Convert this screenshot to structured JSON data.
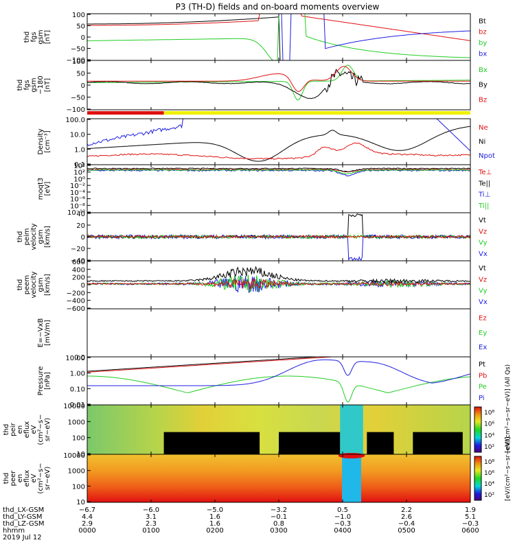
{
  "chart_data": {
    "type": "line",
    "title": "P3 (TH-D) fields and on-board moments overview",
    "panels": [
      {
        "id": "fgs",
        "ylabel_lines": [
          "thd",
          "fgs",
          "gsm",
          "[nT]"
        ],
        "yticks": [
          "100",
          "50",
          "0",
          "−50",
          "−100"
        ],
        "ylim": [
          -100,
          100
        ],
        "legend": [
          {
            "label": "Bt",
            "color": "#000000"
          },
          {
            "label": "bz",
            "color": "#e01010"
          },
          {
            "label": "by",
            "color": "#20cc20"
          },
          {
            "label": "bx",
            "color": "#1c1ce0"
          }
        ]
      },
      {
        "id": "fgs_dsl",
        "ylabel_lines": [
          "thd",
          "fgs",
          "gsm",
          "−180",
          "[nT]"
        ],
        "yticks": [
          "100",
          "50",
          "0",
          "−50",
          "−100"
        ],
        "ylim": [
          -120,
          100
        ],
        "legend": [
          {
            "label": "Bx",
            "color": "#20cc20"
          },
          {
            "label": "By",
            "color": "#000000"
          },
          {
            "label": "Bz",
            "color": "#e01010"
          }
        ]
      },
      {
        "id": "density",
        "ylabel_lines": [
          "Density",
          "[cm⁻³]"
        ],
        "yticks": [
          "100.0",
          "10.0",
          "1.0",
          "0.1"
        ],
        "legend": [
          {
            "label": "Ne",
            "color": "#e01010"
          },
          {
            "label": "Ni",
            "color": "#000000"
          },
          {
            "label": "Npot",
            "color": "#1c1ce0"
          }
        ]
      },
      {
        "id": "temperature",
        "ylabel_lines": [
          "moqt3",
          "[eV]"
        ],
        "yticks": [
          "10⁴",
          "10²",
          "10⁰",
          "10⁻²",
          "10⁻⁴",
          "10⁻⁶",
          "10⁻⁸",
          "10⁻¹⁰"
        ],
        "legend": [
          {
            "label": "Te⊥",
            "color": "#e01010"
          },
          {
            "label": "Te||",
            "color": "#000000"
          },
          {
            "label": "Ti⊥",
            "color": "#1c1ce0"
          },
          {
            "label": "Ti||",
            "color": "#20cc20"
          }
        ]
      },
      {
        "id": "peim_velocity",
        "ylabel_lines": [
          "thd",
          "peim",
          "velocity",
          "gsm",
          "[km/s]"
        ],
        "yticks": [
          "40",
          "20",
          "0",
          "−20",
          "−40"
        ],
        "ylim": [
          -40,
          40
        ],
        "legend": [
          {
            "label": "Vt",
            "color": "#000000"
          },
          {
            "label": "Vz",
            "color": "#e01010"
          },
          {
            "label": "Vy",
            "color": "#20cc20"
          },
          {
            "label": "Vx",
            "color": "#1c1ce0"
          }
        ]
      },
      {
        "id": "peem_velocity",
        "ylabel_lines": [
          "thd",
          "peem",
          "velocity",
          "gsm",
          "[km/s]"
        ],
        "yticks": [
          "600",
          "400",
          "200",
          "0",
          "−200",
          "−400",
          "−600"
        ],
        "ylim": [
          -600,
          600
        ],
        "legend": [
          {
            "label": "Vt",
            "color": "#000000"
          },
          {
            "label": "Vz",
            "color": "#e01010"
          },
          {
            "label": "Vy",
            "color": "#20cc20"
          },
          {
            "label": "Vx",
            "color": "#1c1ce0"
          }
        ]
      },
      {
        "id": "efield",
        "ylabel_lines": [
          "E=−VxB",
          "[mV/m]"
        ],
        "yticks": [
          "0.0"
        ],
        "legend": [
          {
            "label": "Ez",
            "color": "#e01010"
          },
          {
            "label": "Ey",
            "color": "#20cc20"
          },
          {
            "label": "Ex",
            "color": "#1c1ce0"
          }
        ]
      },
      {
        "id": "pressure",
        "ylabel_lines": [
          "Pressure",
          "[nPa]"
        ],
        "yticks": [
          "10.00",
          "1.00",
          "0.10",
          "0.01"
        ],
        "legend": [
          {
            "label": "Pt",
            "color": "#000000"
          },
          {
            "label": "Pb",
            "color": "#e01010"
          },
          {
            "label": "Pe",
            "color": "#20cc20"
          },
          {
            "label": "Pi",
            "color": "#1c1ce0"
          }
        ]
      },
      {
        "id": "peir_spec",
        "type": "heatmap",
        "ylabel_lines": [
          "thd",
          "peir",
          "en",
          "eflux",
          "eV",
          "(cm²−s−",
          "sr−eV)"
        ],
        "yticks": [
          "10000",
          "1000",
          "100",
          "10"
        ],
        "colorbar_ticks": [
          "10⁸",
          "10⁶",
          "10⁴",
          "10²"
        ],
        "colorbar_label": "[eV/(cm²−s−sr−eV)] (All Qs)"
      },
      {
        "id": "peer_spec",
        "type": "heatmap",
        "ylabel_lines": [
          "thd",
          "peer",
          "en",
          "eflux",
          "eV",
          "(cm²−s−",
          "sr−eV)"
        ],
        "yticks": [
          "10000",
          "1000",
          "100",
          "10"
        ],
        "colorbar_ticks": [
          "10⁸",
          "10⁶",
          "10⁴",
          "10²"
        ],
        "colorbar_label": "[eV/(cm²−s−sr−eV)]"
      }
    ],
    "xaxis": {
      "rows": [
        {
          "label": "thd_LX-GSM",
          "values": [
            "−6.7",
            "−6.0",
            "−5.0",
            "−3.2",
            "0.5",
            "2.2",
            "1.9"
          ]
        },
        {
          "label": "thd_LY-GSM",
          "values": [
            "4.4",
            "3.1",
            "1.6",
            "−0.1",
            "−1.0",
            "2.6",
            "5.1"
          ]
        },
        {
          "label": "thd_LZ-GSM",
          "values": [
            "2.9",
            "2.3",
            "1.6",
            "0.8",
            "−0.3",
            "−0.4",
            "−0.3"
          ]
        },
        {
          "label": "hhmm",
          "values": [
            "0000",
            "0100",
            "0200",
            "0300",
            "0400",
            "0500",
            "0600"
          ]
        }
      ],
      "date": "2019 Jul 12"
    }
  }
}
